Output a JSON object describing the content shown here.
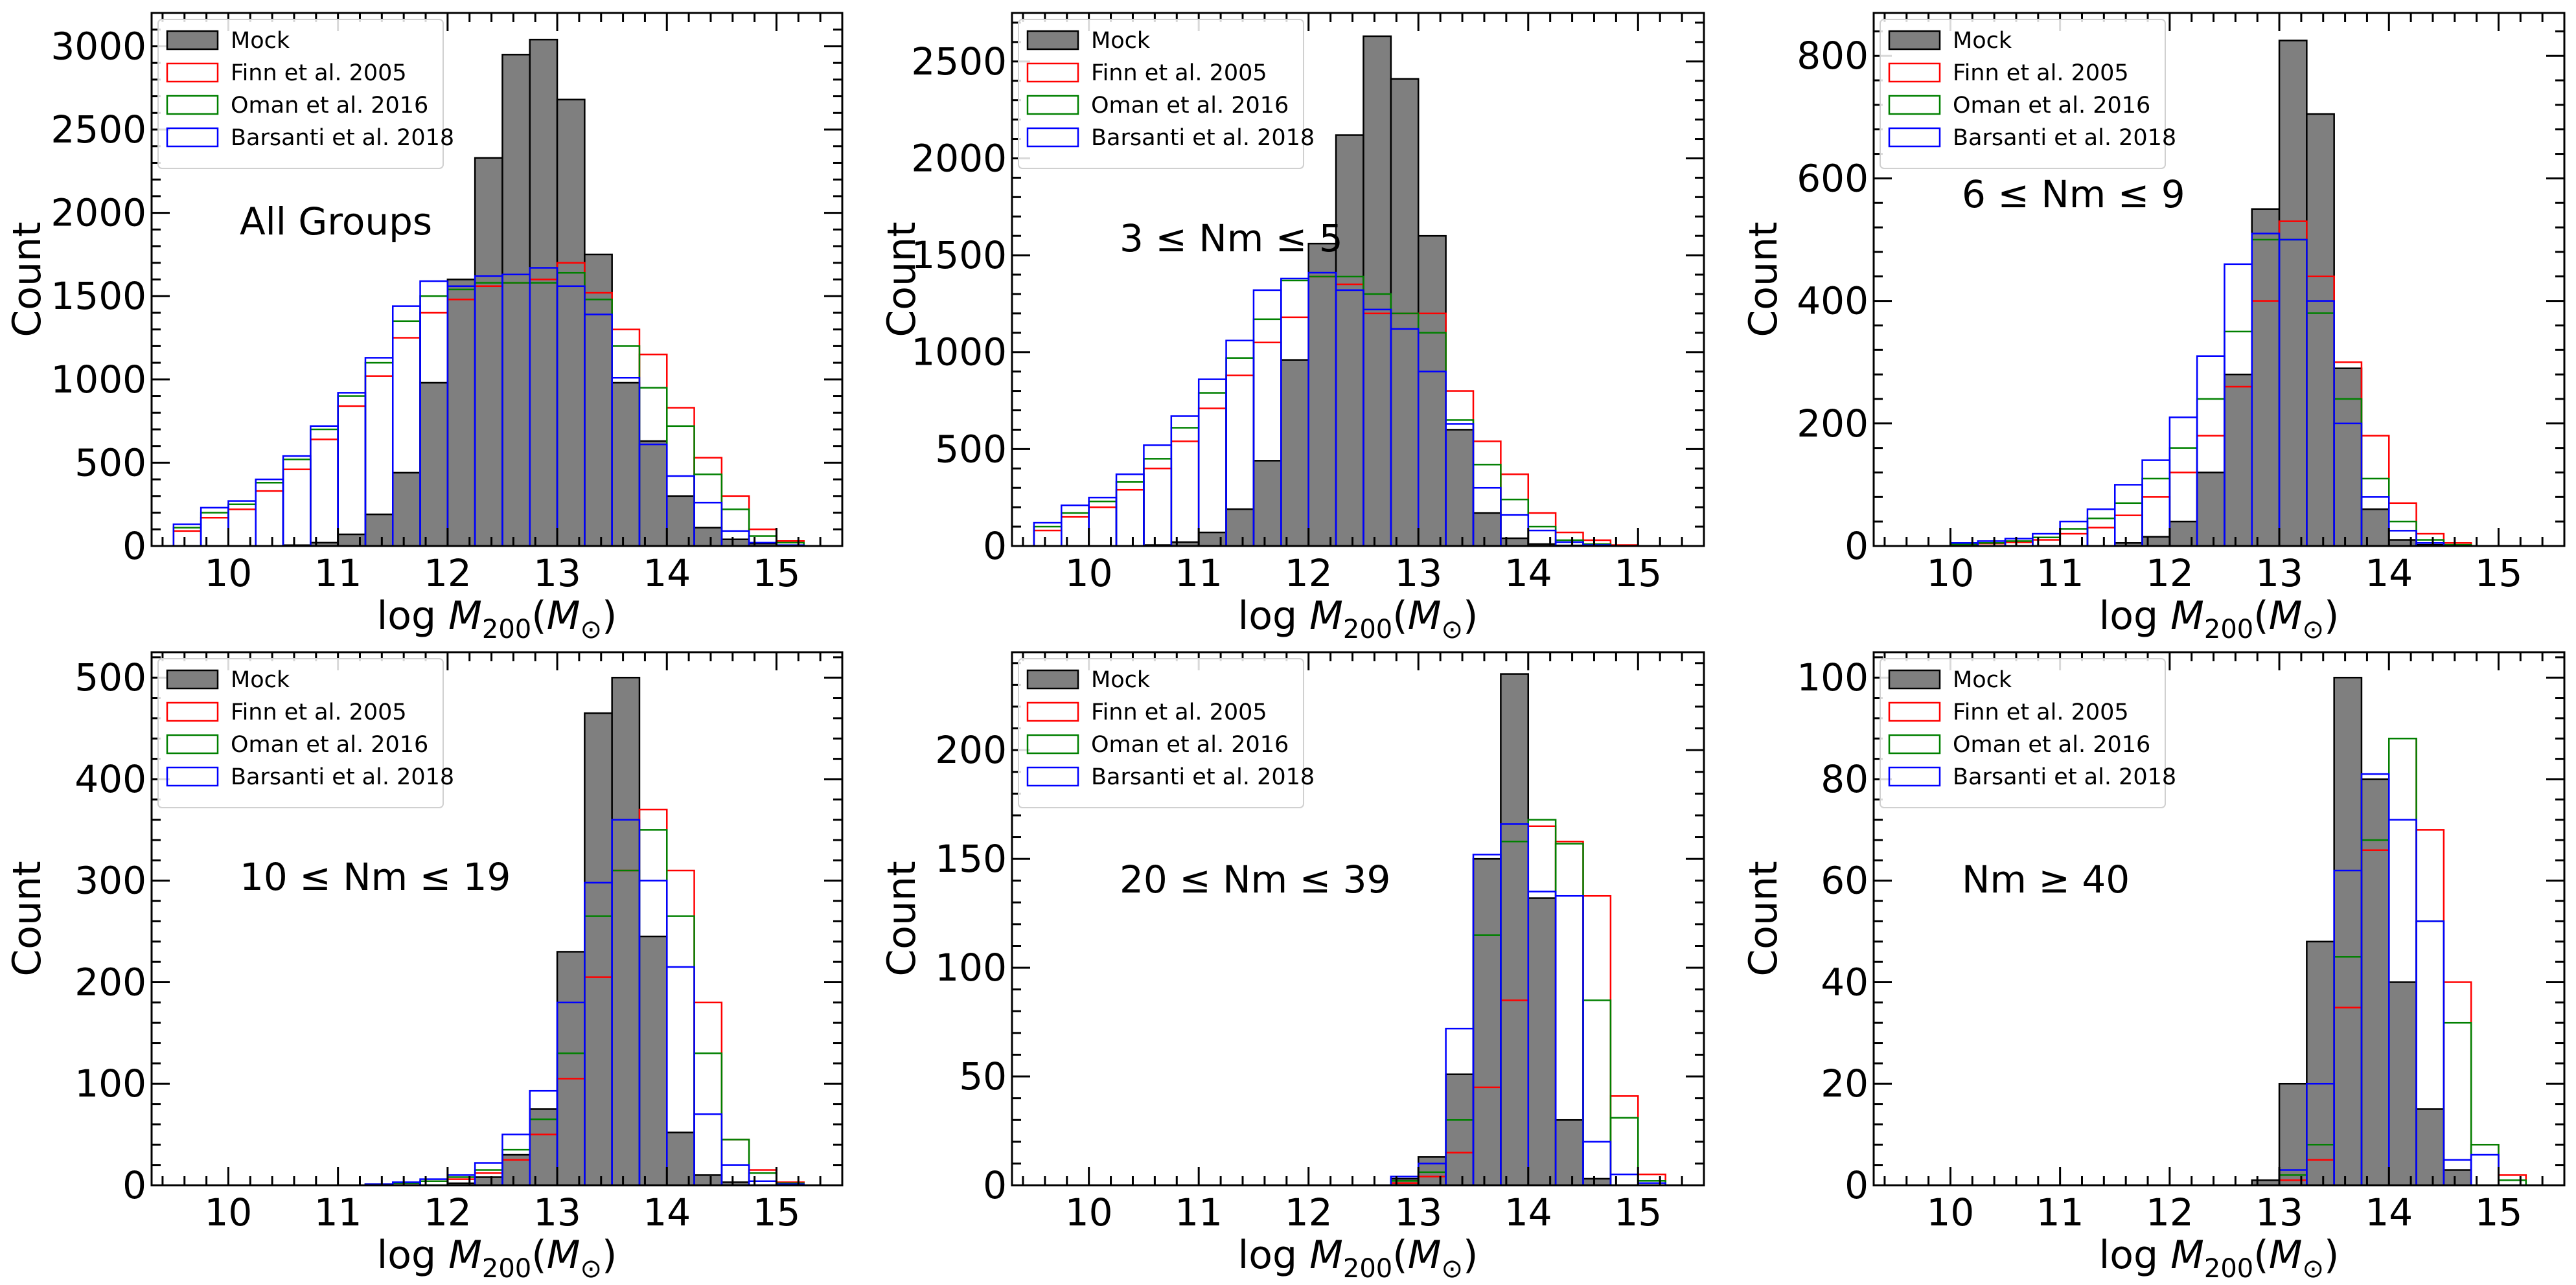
{
  "figure": {
    "legend_labels": [
      "Mock",
      "Finn et al. 2005",
      "Oman et al. 2016",
      "Barsanti et al. 2018"
    ],
    "xlabel": "log M200(M⊙)",
    "ylabel": "Count"
  },
  "colors": {
    "mock_fill": "#7f7f7f",
    "mock_edge": "#000000",
    "finn": "#ff0000",
    "oman": "#008000",
    "barsanti": "#0000ff"
  },
  "chart_data": [
    {
      "type": "bar",
      "panel": "top-left",
      "annotation": "All Groups",
      "xlabel": "log M200(M⊙)",
      "ylabel": "Count",
      "xlim": [
        9.3,
        15.6
      ],
      "ylim": [
        0,
        3200
      ],
      "xticks": [
        10,
        11,
        12,
        13,
        14,
        15
      ],
      "yticks": [
        0,
        500,
        1000,
        1500,
        2000,
        2500,
        3000
      ],
      "legend": "top-left",
      "bin_edges": [
        9.5,
        9.75,
        10.0,
        10.25,
        10.5,
        10.75,
        11.0,
        11.25,
        11.5,
        11.75,
        12.0,
        12.25,
        12.5,
        12.75,
        13.0,
        13.25,
        13.5,
        13.75,
        14.0,
        14.25,
        14.5,
        14.75,
        15.0,
        15.25
      ],
      "series": [
        {
          "name": "Mock",
          "style": "filled",
          "values": [
            0,
            0,
            0,
            0,
            5,
            20,
            70,
            190,
            440,
            980,
            1600,
            2330,
            2950,
            3040,
            2680,
            1750,
            980,
            630,
            300,
            110,
            40,
            15,
            5
          ]
        },
        {
          "name": "Finn et al. 2005",
          "style": "step",
          "values": [
            90,
            170,
            220,
            330,
            460,
            640,
            840,
            1020,
            1250,
            1400,
            1480,
            1560,
            1580,
            1600,
            1700,
            1520,
            1300,
            1150,
            830,
            530,
            300,
            100,
            30
          ]
        },
        {
          "name": "Oman et al. 2016",
          "style": "step",
          "values": [
            110,
            200,
            250,
            380,
            520,
            700,
            900,
            1100,
            1350,
            1500,
            1540,
            1580,
            1580,
            1580,
            1640,
            1480,
            1200,
            950,
            720,
            430,
            220,
            60,
            20
          ]
        },
        {
          "name": "Barsanti et al. 2018",
          "style": "step",
          "values": [
            130,
            230,
            270,
            400,
            540,
            720,
            920,
            1130,
            1440,
            1590,
            1560,
            1620,
            1630,
            1670,
            1560,
            1390,
            1010,
            610,
            420,
            260,
            90,
            20,
            5
          ]
        }
      ]
    },
    {
      "type": "bar",
      "panel": "top-middle",
      "annotation": "3 ≤ Nm ≤ 5",
      "xlabel": "log M200(M⊙)",
      "ylabel": "Count",
      "xlim": [
        9.3,
        15.6
      ],
      "ylim": [
        0,
        2750
      ],
      "xticks": [
        10,
        11,
        12,
        13,
        14,
        15
      ],
      "yticks": [
        0,
        500,
        1000,
        1500,
        2000,
        2500
      ],
      "legend": "top-left",
      "bin_edges": [
        9.5,
        9.75,
        10.0,
        10.25,
        10.5,
        10.75,
        11.0,
        11.25,
        11.5,
        11.75,
        12.0,
        12.25,
        12.5,
        12.75,
        13.0,
        13.25,
        13.5,
        13.75,
        14.0,
        14.25,
        14.5,
        14.75,
        15.0,
        15.25
      ],
      "series": [
        {
          "name": "Mock",
          "style": "filled",
          "values": [
            0,
            0,
            0,
            0,
            5,
            20,
            70,
            190,
            440,
            960,
            1560,
            2120,
            2630,
            2410,
            1600,
            600,
            170,
            40,
            10,
            3,
            0,
            0,
            0
          ]
        },
        {
          "name": "Finn et al. 2005",
          "style": "step",
          "values": [
            80,
            150,
            200,
            290,
            400,
            540,
            710,
            880,
            1050,
            1180,
            1390,
            1350,
            1200,
            1200,
            1200,
            800,
            540,
            370,
            170,
            70,
            30,
            5,
            0
          ]
        },
        {
          "name": "Oman et al. 2016",
          "style": "step",
          "values": [
            100,
            170,
            230,
            330,
            450,
            610,
            790,
            970,
            1170,
            1370,
            1390,
            1390,
            1300,
            1200,
            1100,
            650,
            420,
            240,
            100,
            30,
            10,
            0,
            0
          ]
        },
        {
          "name": "Barsanti et al. 2018",
          "style": "step",
          "values": [
            120,
            210,
            250,
            370,
            520,
            670,
            860,
            1060,
            1320,
            1380,
            1410,
            1320,
            1220,
            1120,
            900,
            630,
            300,
            160,
            80,
            20,
            5,
            0,
            0
          ]
        }
      ]
    },
    {
      "type": "bar",
      "panel": "top-right",
      "annotation": "6 ≤ Nm ≤ 9",
      "xlabel": "log M200(M⊙)",
      "ylabel": "Count",
      "xlim": [
        9.3,
        15.6
      ],
      "ylim": [
        0,
        870
      ],
      "xticks": [
        10,
        11,
        12,
        13,
        14,
        15
      ],
      "yticks": [
        0,
        200,
        400,
        600,
        800
      ],
      "legend": "top-left",
      "bin_edges": [
        9.5,
        9.75,
        10.0,
        10.25,
        10.5,
        10.75,
        11.0,
        11.25,
        11.5,
        11.75,
        12.0,
        12.25,
        12.5,
        12.75,
        13.0,
        13.25,
        13.5,
        13.75,
        14.0,
        14.25,
        14.5,
        14.75,
        15.0,
        15.25
      ],
      "series": [
        {
          "name": "Mock",
          "style": "filled",
          "values": [
            0,
            0,
            0,
            0,
            0,
            0,
            0,
            0,
            5,
            15,
            40,
            120,
            280,
            550,
            825,
            705,
            290,
            60,
            10,
            2,
            0,
            0,
            0
          ]
        },
        {
          "name": "Finn et al. 2005",
          "style": "step",
          "values": [
            0,
            0,
            2,
            4,
            6,
            10,
            20,
            30,
            50,
            80,
            120,
            180,
            260,
            400,
            530,
            440,
            300,
            180,
            70,
            20,
            5,
            0,
            0
          ]
        },
        {
          "name": "Oman et al. 2016",
          "style": "step",
          "values": [
            0,
            0,
            3,
            5,
            8,
            14,
            28,
            45,
            70,
            110,
            160,
            240,
            350,
            500,
            500,
            380,
            240,
            110,
            40,
            10,
            2,
            0,
            0
          ]
        },
        {
          "name": "Barsanti et al. 2018",
          "style": "step",
          "values": [
            0,
            0,
            5,
            8,
            12,
            20,
            40,
            60,
            100,
            140,
            210,
            310,
            460,
            510,
            500,
            400,
            200,
            80,
            25,
            5,
            0,
            0,
            0
          ]
        }
      ]
    },
    {
      "type": "bar",
      "panel": "bottom-left",
      "annotation": "10 ≤ Nm ≤ 19",
      "xlabel": "log M200(M⊙)",
      "ylabel": "Count",
      "xlim": [
        9.3,
        15.6
      ],
      "ylim": [
        0,
        525
      ],
      "xticks": [
        10,
        11,
        12,
        13,
        14,
        15
      ],
      "yticks": [
        0,
        100,
        200,
        300,
        400,
        500
      ],
      "legend": "top-left",
      "bin_edges": [
        9.5,
        9.75,
        10.0,
        10.25,
        10.5,
        10.75,
        11.0,
        11.25,
        11.5,
        11.75,
        12.0,
        12.25,
        12.5,
        12.75,
        13.0,
        13.25,
        13.5,
        13.75,
        14.0,
        14.25,
        14.5,
        14.75,
        15.0,
        15.25
      ],
      "series": [
        {
          "name": "Mock",
          "style": "filled",
          "values": [
            0,
            0,
            0,
            0,
            0,
            0,
            0,
            0,
            0,
            0,
            2,
            8,
            30,
            75,
            230,
            465,
            500,
            245,
            52,
            10,
            3,
            0,
            0
          ]
        },
        {
          "name": "Finn et al. 2005",
          "style": "step",
          "values": [
            0,
            0,
            0,
            0,
            0,
            0,
            0,
            1,
            2,
            4,
            6,
            12,
            25,
            50,
            105,
            205,
            310,
            370,
            310,
            180,
            45,
            15,
            3
          ]
        },
        {
          "name": "Oman et al. 2016",
          "style": "step",
          "values": [
            0,
            0,
            0,
            0,
            0,
            0,
            0,
            1,
            2,
            4,
            8,
            15,
            35,
            65,
            130,
            265,
            310,
            350,
            265,
            130,
            45,
            12,
            2
          ]
        },
        {
          "name": "Barsanti et al. 2018",
          "style": "step",
          "values": [
            0,
            0,
            0,
            0,
            0,
            0,
            0,
            1,
            3,
            6,
            10,
            22,
            50,
            93,
            180,
            298,
            360,
            300,
            215,
            70,
            20,
            4,
            1
          ]
        }
      ]
    },
    {
      "type": "bar",
      "panel": "bottom-middle",
      "annotation": "20 ≤ Nm ≤ 39",
      "xlabel": "log M200(M⊙)",
      "ylabel": "Count",
      "xlim": [
        9.3,
        15.6
      ],
      "ylim": [
        0,
        245
      ],
      "xticks": [
        10,
        11,
        12,
        13,
        14,
        15
      ],
      "yticks": [
        0,
        50,
        100,
        150,
        200
      ],
      "legend": "top-left",
      "bin_edges": [
        9.5,
        9.75,
        10.0,
        10.25,
        10.5,
        10.75,
        11.0,
        11.25,
        11.5,
        11.75,
        12.0,
        12.25,
        12.5,
        12.75,
        13.0,
        13.25,
        13.5,
        13.75,
        14.0,
        14.25,
        14.5,
        14.75,
        15.0,
        15.25
      ],
      "series": [
        {
          "name": "Mock",
          "style": "filled",
          "values": [
            0,
            0,
            0,
            0,
            0,
            0,
            0,
            0,
            0,
            0,
            0,
            0,
            0,
            3,
            13,
            51,
            150,
            235,
            132,
            30,
            3,
            0,
            0
          ]
        },
        {
          "name": "Finn et al. 2005",
          "style": "step",
          "values": [
            0,
            0,
            0,
            0,
            0,
            0,
            0,
            0,
            0,
            0,
            0,
            0,
            0,
            1,
            4,
            15,
            45,
            85,
            165,
            158,
            133,
            41,
            5
          ]
        },
        {
          "name": "Oman et al. 2016",
          "style": "step",
          "values": [
            0,
            0,
            0,
            0,
            0,
            0,
            0,
            0,
            0,
            0,
            0,
            0,
            0,
            2,
            6,
            30,
            115,
            158,
            168,
            157,
            85,
            31,
            2
          ]
        },
        {
          "name": "Barsanti et al. 2018",
          "style": "step",
          "values": [
            0,
            0,
            0,
            0,
            0,
            0,
            0,
            0,
            0,
            0,
            0,
            0,
            0,
            4,
            10,
            72,
            152,
            166,
            135,
            133,
            20,
            5,
            1
          ]
        }
      ]
    },
    {
      "type": "bar",
      "panel": "bottom-right",
      "annotation": "Nm ≥ 40",
      "xlabel": "log M200(M⊙)",
      "ylabel": "Count",
      "xlim": [
        9.3,
        15.6
      ],
      "ylim": [
        0,
        105
      ],
      "xticks": [
        10,
        11,
        12,
        13,
        14,
        15
      ],
      "yticks": [
        0,
        20,
        40,
        60,
        80,
        100
      ],
      "legend": "top-left",
      "bin_edges": [
        9.5,
        9.75,
        10.0,
        10.25,
        10.5,
        10.75,
        11.0,
        11.25,
        11.5,
        11.75,
        12.0,
        12.25,
        12.5,
        12.75,
        13.0,
        13.25,
        13.5,
        13.75,
        14.0,
        14.25,
        14.5,
        14.75,
        15.0,
        15.25
      ],
      "series": [
        {
          "name": "Mock",
          "style": "filled",
          "values": [
            0,
            0,
            0,
            0,
            0,
            0,
            0,
            0,
            0,
            0,
            0,
            0,
            0,
            1,
            20,
            48,
            100,
            80,
            40,
            15,
            3,
            0,
            0
          ]
        },
        {
          "name": "Finn et al. 2005",
          "style": "step",
          "values": [
            0,
            0,
            0,
            0,
            0,
            0,
            0,
            0,
            0,
            0,
            0,
            0,
            0,
            0,
            1,
            5,
            35,
            66,
            88,
            70,
            40,
            8,
            2
          ]
        },
        {
          "name": "Oman et al. 2016",
          "style": "step",
          "values": [
            0,
            0,
            0,
            0,
            0,
            0,
            0,
            0,
            0,
            0,
            0,
            0,
            0,
            0,
            2,
            8,
            45,
            68,
            88,
            52,
            32,
            8,
            1
          ]
        },
        {
          "name": "Barsanti et al. 2018",
          "style": "step",
          "values": [
            0,
            0,
            0,
            0,
            0,
            0,
            0,
            0,
            0,
            0,
            0,
            0,
            0,
            0,
            3,
            20,
            62,
            81,
            72,
            52,
            5,
            6,
            0
          ]
        }
      ]
    }
  ]
}
